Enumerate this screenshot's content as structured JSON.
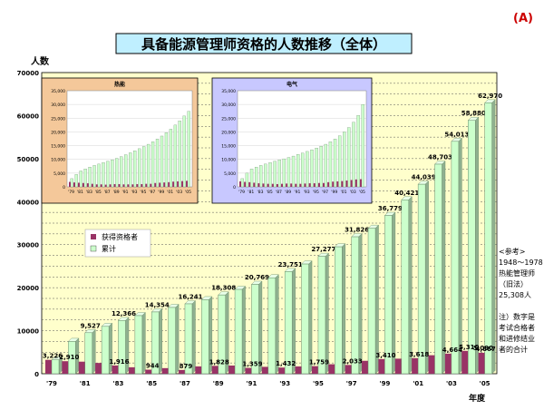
{
  "corner_label": "(A)",
  "title": "具备能源管理师资格的人数推移（全体）",
  "ylabel": "人数",
  "xlabel_unit": "年度",
  "legend": [
    {
      "name": "获得资格者",
      "color": "#993366"
    },
    {
      "name": "累计",
      "color": "#ccffcc"
    }
  ],
  "note": {
    "ref_lines": [
      "<参考>",
      "1948〜1978",
      "热能管理师",
      "（旧法）",
      "25,308人"
    ],
    "footnote_lines": [
      "注）数字是",
      "考试合格者",
      "和进修结业",
      "者的合计"
    ]
  },
  "chart_data": {
    "type": "bar",
    "title": "具备能源管理师资格的人数推移（全体）",
    "ylabel": "人数",
    "xlabel": "年度",
    "ylim": [
      0,
      70000
    ],
    "yticks": [
      0,
      10000,
      20000,
      30000,
      40000,
      50000,
      60000,
      70000
    ],
    "ytick_labels": [
      "0",
      "10000",
      "20000",
      "30000",
      "40000",
      "50000",
      "60000",
      "70000"
    ],
    "categories": [
      "'79",
      "'80",
      "'81",
      "'82",
      "'83",
      "'84",
      "'85",
      "'86",
      "'87",
      "'88",
      "'89",
      "'90",
      "'91",
      "'92",
      "'93",
      "'94",
      "'95",
      "'96",
      "'97",
      "'98",
      "'99",
      "'00",
      "'01",
      "'02",
      "'03",
      "'04",
      "'05"
    ],
    "xtick_labels": [
      "'79",
      "",
      "'81",
      "",
      "'83",
      "",
      "'85",
      "",
      "'87",
      "",
      "'89",
      "",
      "'91",
      "",
      "'93",
      "",
      "'95",
      "",
      "'97",
      "",
      "'99",
      "",
      "'01",
      "",
      "'03",
      "",
      "'05"
    ],
    "series": [
      {
        "name": "获得资格者",
        "color": "#993366",
        "values": [
          3226,
          2910,
          2800,
          2500,
          1916,
          1500,
          944,
          1300,
          879,
          1700,
          1828,
          1900,
          1359,
          1600,
          1432,
          1700,
          1759,
          2200,
          2033,
          3000,
          3410,
          3500,
          3618,
          4300,
          4664,
          5310,
          4867
        ],
        "labels": [
          "3,226",
          "2,910",
          "",
          "",
          "1,916",
          "",
          "944",
          "",
          "879",
          "",
          "1,828",
          "",
          "1,359",
          "",
          "1,432",
          "",
          "1,759",
          "",
          "2,033",
          "",
          "3,410",
          "",
          "3,618",
          "",
          "4,664",
          "5,310",
          "4,867"
        ]
      },
      {
        "name": "累计",
        "color": "#ccffcc",
        "values": [
          3226,
          7500,
          9527,
          11000,
          12366,
          13500,
          14354,
          15400,
          16241,
          17200,
          18308,
          19600,
          20769,
          22300,
          23751,
          25500,
          27277,
          29500,
          31826,
          33800,
          36779,
          40421,
          44039,
          48703,
          54013,
          58880,
          62970
        ],
        "labels": [
          "",
          "",
          "9,527",
          "",
          "12,366",
          "",
          "14,354",
          "",
          "16,241",
          "",
          "18,308",
          "",
          "20,769",
          "",
          "23,751",
          "",
          "27,277",
          "",
          "31,826",
          "",
          "36,779",
          "40,421",
          "44,039",
          "48,703",
          "54,013",
          "58,880",
          "62,970"
        ]
      }
    ],
    "extra_labels": [
      "5,090"
    ],
    "grid": true,
    "legend_position": "center-left"
  },
  "insets": [
    {
      "title": "热能",
      "bg": "#f4c89a",
      "type": "bar",
      "ylim": [
        0,
        35000
      ],
      "ytick_labels": [
        "0",
        "5,000",
        "10,000",
        "15,000",
        "20,000",
        "25,000",
        "30,000",
        "35,000"
      ],
      "xtick_labels": [
        "'79",
        "'81",
        "'83",
        "'85",
        "'87",
        "'89",
        "'91",
        "'93",
        "'95",
        "'97",
        "'99",
        "'01",
        "'03",
        "'05"
      ],
      "series": [
        {
          "name": "获得资格者",
          "values": [
            1800,
            1600,
            1500,
            1400,
            1300,
            1100,
            900,
            900,
            800,
            900,
            1000,
            1000,
            900,
            900,
            900,
            1000,
            1000,
            1100,
            1100,
            1400,
            1500,
            1600,
            1700,
            1900,
            2000,
            2100,
            2200
          ]
        },
        {
          "name": "累计",
          "values": [
            3000,
            4500,
            5800,
            6500,
            7200,
            7800,
            8300,
            8800,
            9300,
            9800,
            10400,
            11000,
            11700,
            12400,
            13100,
            13900,
            14700,
            15500,
            16400,
            17400,
            18500,
            19700,
            21000,
            22500,
            24000,
            25800,
            27500
          ]
        }
      ]
    },
    {
      "title": "电气",
      "bg": "#c8c8ff",
      "type": "bar",
      "ylim": [
        0,
        35000
      ],
      "ytick_labels": [
        "0",
        "5,000",
        "10,000",
        "15,000",
        "20,000",
        "25,000",
        "30,000",
        "35,000"
      ],
      "xtick_labels": [
        "'79",
        "'81",
        "'83",
        "'85",
        "'87",
        "'89",
        "'91",
        "'93",
        "'95",
        "'97",
        "'99",
        "'01",
        "'03",
        "'05"
      ],
      "series": [
        {
          "name": "获得资格者",
          "values": [
            2000,
            1800,
            1700,
            1500,
            1300,
            1200,
            1100,
            1100,
            1000,
            1100,
            1200,
            1200,
            1100,
            1100,
            1200,
            1300,
            1300,
            1400,
            1400,
            1700,
            1900,
            2000,
            2100,
            2300,
            2500,
            2700,
            2800
          ]
        },
        {
          "name": "累计",
          "values": [
            3000,
            5000,
            6500,
            7200,
            7800,
            8300,
            8800,
            9300,
            9800,
            10200,
            10700,
            11200,
            11800,
            12300,
            12900,
            13500,
            14100,
            14800,
            15500,
            16400,
            17400,
            18600,
            20000,
            21600,
            23500,
            26000,
            30000
          ]
        }
      ]
    }
  ]
}
